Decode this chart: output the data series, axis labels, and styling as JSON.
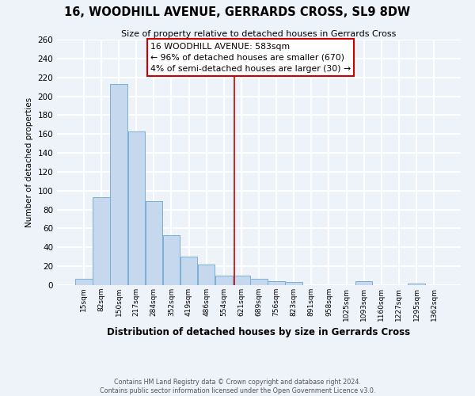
{
  "title": "16, WOODHILL AVENUE, GERRARDS CROSS, SL9 8DW",
  "subtitle": "Size of property relative to detached houses in Gerrards Cross",
  "xlabel": "Distribution of detached houses by size in Gerrards Cross",
  "ylabel": "Number of detached properties",
  "bar_labels": [
    "15sqm",
    "82sqm",
    "150sqm",
    "217sqm",
    "284sqm",
    "352sqm",
    "419sqm",
    "486sqm",
    "554sqm",
    "621sqm",
    "689sqm",
    "756sqm",
    "823sqm",
    "891sqm",
    "958sqm",
    "1025sqm",
    "1093sqm",
    "1160sqm",
    "1227sqm",
    "1295sqm",
    "1362sqm"
  ],
  "bar_values": [
    7,
    93,
    213,
    163,
    89,
    53,
    30,
    22,
    10,
    10,
    7,
    4,
    3,
    0,
    0,
    0,
    4,
    0,
    0,
    2,
    0
  ],
  "bar_color": "#c5d8ed",
  "bar_edge_color": "#7aafd4",
  "background_color": "#eef2f9",
  "grid_color": "#ffffff",
  "ylim": [
    0,
    260
  ],
  "yticks": [
    0,
    20,
    40,
    60,
    80,
    100,
    120,
    140,
    160,
    180,
    200,
    220,
    240,
    260
  ],
  "property_line_x": 8.58,
  "property_line_color": "#cc0000",
  "annotation_text": "16 WOODHILL AVENUE: 583sqm\n← 96% of detached houses are smaller (670)\n4% of semi-detached houses are larger (30) →",
  "annotation_box_color": "#ffffff",
  "annotation_box_edge": "#cc0000",
  "footer_line1": "Contains HM Land Registry data © Crown copyright and database right 2024.",
  "footer_line2": "Contains public sector information licensed under the Open Government Licence v3.0."
}
